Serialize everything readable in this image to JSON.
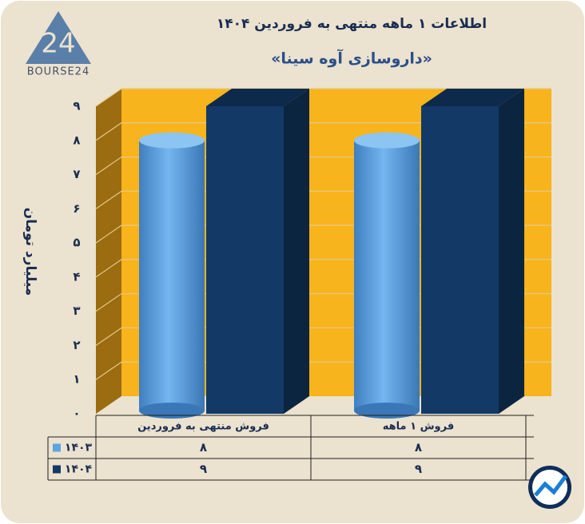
{
  "logo": {
    "mark": "24",
    "text": "BOURSE24"
  },
  "chart_data": {
    "type": "bar3d",
    "title": "اطلاعات ۱ ماهه منتهی به فروردین ۱۴۰۴",
    "subtitle": "«داروسازی آوه سینا»",
    "y_label": "میلیارد تومان",
    "categories": [
      "فروش منتهی به  فروردین",
      "فروش ۱  ماهه"
    ],
    "series": [
      {
        "name": "۱۴۰۳",
        "color": "#5fa4e0",
        "values": [
          8,
          8
        ],
        "value_labels": [
          "۸",
          "۸"
        ]
      },
      {
        "name": "۱۴۰۴",
        "color": "#133a66",
        "values": [
          9,
          9
        ],
        "value_labels": [
          "۹",
          "۹"
        ]
      }
    ],
    "ylim": [
      0,
      9
    ],
    "yticks": [
      {
        "value": 0,
        "label": "۰"
      },
      {
        "value": 1,
        "label": "۱"
      },
      {
        "value": 2,
        "label": "۲"
      },
      {
        "value": 3,
        "label": "۳"
      },
      {
        "value": 4,
        "label": "۴"
      },
      {
        "value": 5,
        "label": "۵"
      },
      {
        "value": 6,
        "label": "۶"
      },
      {
        "value": 7,
        "label": "۷"
      },
      {
        "value": 8,
        "label": "۸"
      },
      {
        "value": 9,
        "label": "۹"
      }
    ],
    "grid": true,
    "wall_color": "#f8b41c"
  }
}
